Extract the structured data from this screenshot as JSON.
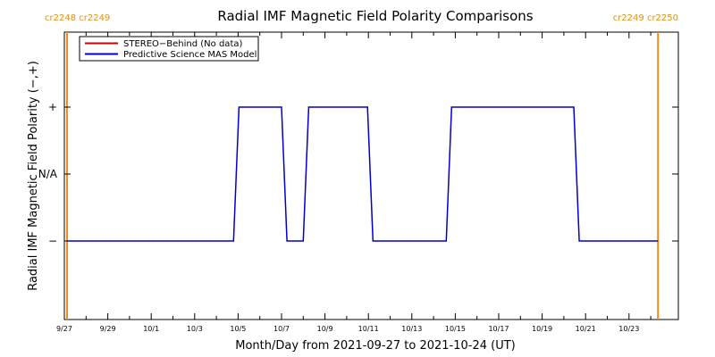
{
  "chart_data": {
    "type": "line",
    "title": "Radial IMF Magnetic Field Polarity Comparisons",
    "xlabel": "Month/Day from 2021-09-27 to 2021-10-24 (UT)",
    "ylabel": "Radial IMF Magnetic Field Polarity (−,+)",
    "x_range": [
      "2021-09-27",
      "2021-10-24"
    ],
    "y_categories": [
      "−",
      "N/A",
      "+"
    ],
    "x_tick_labels": [
      "9/27",
      "9/29",
      "10/1",
      "10/3",
      "10/5",
      "10/7",
      "10/9",
      "10/11",
      "10/13",
      "10/15",
      "10/17",
      "10/19",
      "10/21",
      "10/23"
    ],
    "rotation_markers": {
      "left": "cr2248 cr2249",
      "right": "cr2249 cr2250",
      "marker_color": "#f08c1a",
      "left_date": "2021-09-27T03:00",
      "right_date": "2021-10-24T08:00"
    },
    "legend_placement": "top-left",
    "series": [
      {
        "name": "STEREO−Behind (No data)",
        "color": "#cc0000",
        "points": []
      },
      {
        "name": "Predictive Science MAS Model",
        "color": "#0000cc",
        "points": [
          {
            "t": "2021-09-27T03:00",
            "p": "−"
          },
          {
            "t": "2021-10-04T19:00",
            "p": "−"
          },
          {
            "t": "2021-10-05T01:00",
            "p": "+"
          },
          {
            "t": "2021-10-07T00:00",
            "p": "+"
          },
          {
            "t": "2021-10-07T06:00",
            "p": "−"
          },
          {
            "t": "2021-10-08T00:00",
            "p": "−"
          },
          {
            "t": "2021-10-08T06:00",
            "p": "+"
          },
          {
            "t": "2021-10-10T23:00",
            "p": "+"
          },
          {
            "t": "2021-10-11T05:00",
            "p": "−"
          },
          {
            "t": "2021-10-14T14:00",
            "p": "−"
          },
          {
            "t": "2021-10-14T20:00",
            "p": "+"
          },
          {
            "t": "2021-10-20T11:00",
            "p": "+"
          },
          {
            "t": "2021-10-20T17:00",
            "p": "−"
          },
          {
            "t": "2021-10-24T08:00",
            "p": "−"
          }
        ]
      }
    ]
  }
}
